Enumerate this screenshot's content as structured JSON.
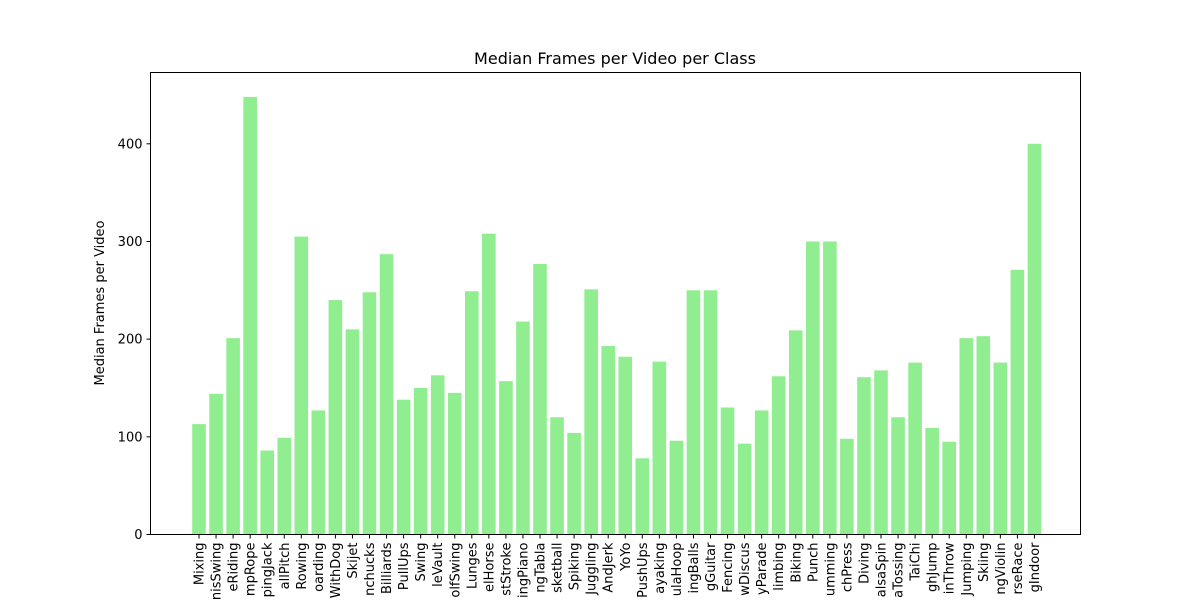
{
  "chart_data": {
    "type": "bar",
    "title": "Median Frames per Video per Class",
    "xlabel": "",
    "ylabel": "Median Frames per Video",
    "ylim": [
      0,
      473
    ],
    "yticks": [
      0,
      100,
      200,
      300,
      400
    ],
    "bar_color": "#90ee90",
    "categories": [
      "Mixing",
      "TennisSwing",
      "HorseRiding",
      "JumpRope",
      "JumpingJack",
      "BaseballPitch",
      "Rowing",
      "Skateboarding",
      "WalkingWithDog",
      "Skijet",
      "Nunchucks",
      "Billiards",
      "PullUps",
      "Swing",
      "PoleVault",
      "GolfSwing",
      "Lunges",
      "PommelHorse",
      "BreastStroke",
      "PlayingPiano",
      "PlayingTabla",
      "Basketball",
      "VolleyballSpiking",
      "Juggling",
      "CleanAndJerk",
      "YoYo",
      "PushUps",
      "Kayaking",
      "HulaHoop",
      "JugglingBalls",
      "PlayingGuitar",
      "Fencing",
      "ThrowDiscus",
      "MilitaryParade",
      "RockClimbing",
      "Biking",
      "Punch",
      "Drumming",
      "BenchPress",
      "Diving",
      "SalsaSpin",
      "PizzaTossing",
      "TaiChi",
      "HighJump",
      "JavelinThrow",
      "Jumping",
      "Skiing",
      "PlayingViolin",
      "HorseRace",
      "RockClimbingIndoor"
    ],
    "tick_labels": [
      "Mixing",
      "nisSwing",
      "eRiding",
      "mpRope",
      "pingJack",
      "allPitch",
      "Rowing",
      "oarding",
      "WithDog",
      "Skijet",
      "nchucks",
      "Billiards",
      "PullUps",
      "Swing",
      "leVault",
      "olfSwing",
      "Lunges",
      "elHorse",
      "stStroke",
      "ingPiano",
      "ngTabla",
      "sketball",
      "Spiking",
      "Juggling",
      "AndJerk",
      "YoYo",
      "PushUps",
      "ayaking",
      "ulaHoop",
      "ingBalls",
      "gGuitar",
      "Fencing",
      "wDiscus",
      "yParade",
      "limbing",
      "Biking",
      "Punch",
      "umming",
      "chPress",
      "Diving",
      "alsaSpin",
      "aTossing",
      "TaiChi",
      "ghJump",
      "inThrow",
      "Jumping",
      "Skiing",
      "ngViolin",
      "rseRace",
      "gIndoor"
    ],
    "values": [
      113,
      144,
      201,
      448,
      86,
      99,
      305,
      127,
      240,
      210,
      248,
      287,
      138,
      150,
      163,
      145,
      249,
      308,
      157,
      218,
      277,
      120,
      104,
      251,
      193,
      182,
      78,
      177,
      96,
      250,
      250,
      130,
      93,
      127,
      162,
      209,
      300,
      300,
      98,
      161,
      168,
      120,
      176,
      109,
      95,
      201,
      203,
      176,
      271,
      400
    ]
  }
}
